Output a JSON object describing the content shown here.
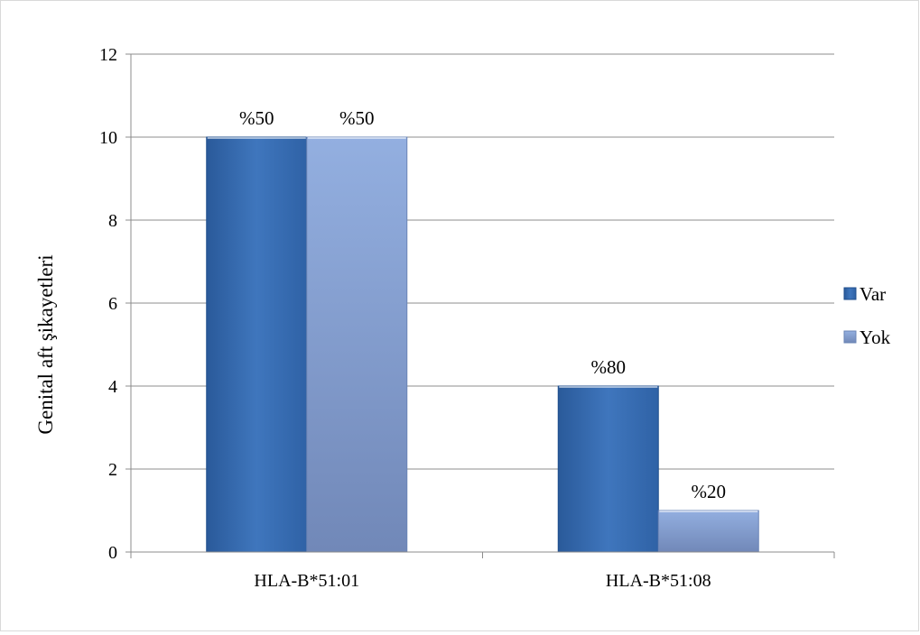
{
  "chart_data": {
    "type": "bar",
    "categories": [
      "HLA-B*51:01",
      "HLA-B*51:08"
    ],
    "series": [
      {
        "name": "Var",
        "values": [
          10,
          4
        ],
        "labels": [
          "%50",
          "%80"
        ],
        "color": "#3a6fb4"
      },
      {
        "name": "Yok",
        "values": [
          10,
          1
        ],
        "labels": [
          "%50",
          "%20"
        ],
        "color": "#8eaadb"
      }
    ],
    "title": "",
    "xlabel": "",
    "ylabel": "Genital aft şikayetleri",
    "ylim": [
      0,
      12
    ],
    "yticks": [
      0,
      2,
      4,
      6,
      8,
      10,
      12
    ],
    "grid": true,
    "legend_position": "right"
  }
}
